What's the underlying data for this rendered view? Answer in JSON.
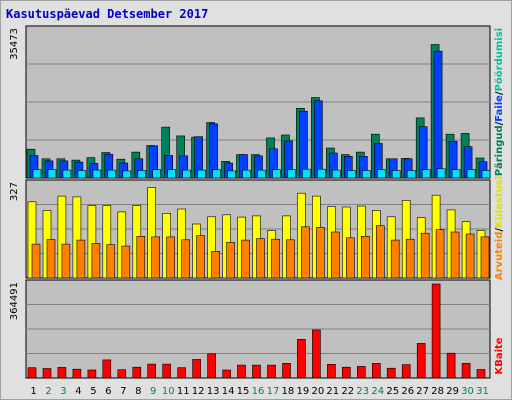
{
  "title": "Kasutuspäevad Detsember 2017",
  "colors": {
    "hits": "#00805c",
    "files": "#0040ff",
    "pages": "#00e0ff",
    "visits": "#ffff00",
    "sites": "#ff8000",
    "kbytes": "#ff0000",
    "weekend": "#00805c",
    "weekday": "#000000",
    "panel": "#c0c0c0",
    "label_hits": "#00805c",
    "label_files": "#0040ff",
    "label_pages": "#00c0a0",
    "label_visits": "#e0e000",
    "label_sites": "#ff8000",
    "label_kbytes": "#ff0000"
  },
  "chart_data": {
    "type": "bar",
    "categories": [
      "1",
      "2",
      "3",
      "4",
      "5",
      "6",
      "7",
      "8",
      "9",
      "10",
      "11",
      "12",
      "13",
      "14",
      "15",
      "16",
      "17",
      "18",
      "19",
      "20",
      "21",
      "22",
      "23",
      "24",
      "25",
      "26",
      "27",
      "28",
      "29",
      "30",
      "31"
    ],
    "weekend_days": [
      2,
      3,
      9,
      10,
      16,
      17,
      23,
      24,
      30,
      31
    ],
    "panels": [
      {
        "id": "requests",
        "ymax": 35473,
        "ymax_label": "35473",
        "legend": [
          "Päringud",
          "Faile",
          "Pöördumisi"
        ],
        "series": [
          {
            "name": "Päringud",
            "color_key": "hits",
            "values": [
              6900,
              4600,
              4600,
              4300,
              4900,
              6100,
              4500,
              6200,
              7800,
              12200,
              10100,
              9800,
              13300,
              4000,
              5600,
              5600,
              9600,
              10300,
              16700,
              19300,
              7200,
              5600,
              6200,
              10500,
              4600,
              4700,
              14400,
              32000,
              10500,
              10700,
              4800
            ]
          },
          {
            "name": "Faile",
            "color_key": "files",
            "values": [
              5400,
              4100,
              4100,
              3800,
              3500,
              5700,
              3600,
              4600,
              7700,
              5400,
              5300,
              9900,
              13000,
              3600,
              5600,
              5300,
              7000,
              8900,
              16000,
              18500,
              6000,
              5200,
              5200,
              8300,
              4600,
              4600,
              12300,
              30400,
              8800,
              7500,
              3900
            ]
          },
          {
            "name": "Pöördumisi",
            "color_key": "pages",
            "values": [
              2000,
              2000,
              1900,
              1800,
              1900,
              1900,
              1700,
              1800,
              2000,
              2000,
              1900,
              1900,
              2000,
              1700,
              1900,
              1900,
              2000,
              2000,
              2100,
              2100,
              1900,
              1800,
              1800,
              2000,
              1800,
              1800,
              2000,
              2200,
              2000,
              2000,
              1800
            ]
          }
        ]
      },
      {
        "id": "visits",
        "ymax": 327,
        "ymax_label": "327",
        "legend": [
          "Külastusi",
          "Arvuteid"
        ],
        "series": [
          {
            "name": "Külastusi",
            "color_key": "visits",
            "values": [
              265,
              235,
              285,
              282,
              252,
              252,
              230,
              252,
              315,
              225,
              240,
              188,
              213,
              220,
              212,
              216,
              165,
              216,
              295,
              285,
              248,
              247,
              250,
              235,
              213,
              270,
              210,
              288,
              237,
              196,
              166
            ]
          },
          {
            "name": "Arvuteid",
            "color_key": "sites",
            "values": [
              118,
              134,
              118,
              132,
              120,
              116,
              111,
              145,
              143,
              143,
              133,
              147,
              93,
              124,
              132,
              137,
              135,
              133,
              178,
              176,
              160,
              140,
              145,
              182,
              132,
              135,
              156,
              168,
              160,
              153,
              143
            ]
          }
        ]
      },
      {
        "id": "kbytes",
        "ymax": 364491,
        "ymax_label": "364491",
        "legend": [
          "KBaite"
        ],
        "series": [
          {
            "name": "KBaite",
            "color_key": "kbytes",
            "values": [
              40000,
              37000,
              41000,
              34000,
              31000,
              70000,
              32000,
              42000,
              54000,
              54000,
              40000,
              72000,
              94000,
              31000,
              50000,
              50000,
              50000,
              57000,
              150000,
              186000,
              53000,
              42000,
              45000,
              57000,
              38000,
              52000,
              134000,
              364491,
              96000,
              57000,
              33000
            ]
          }
        ]
      }
    ]
  }
}
